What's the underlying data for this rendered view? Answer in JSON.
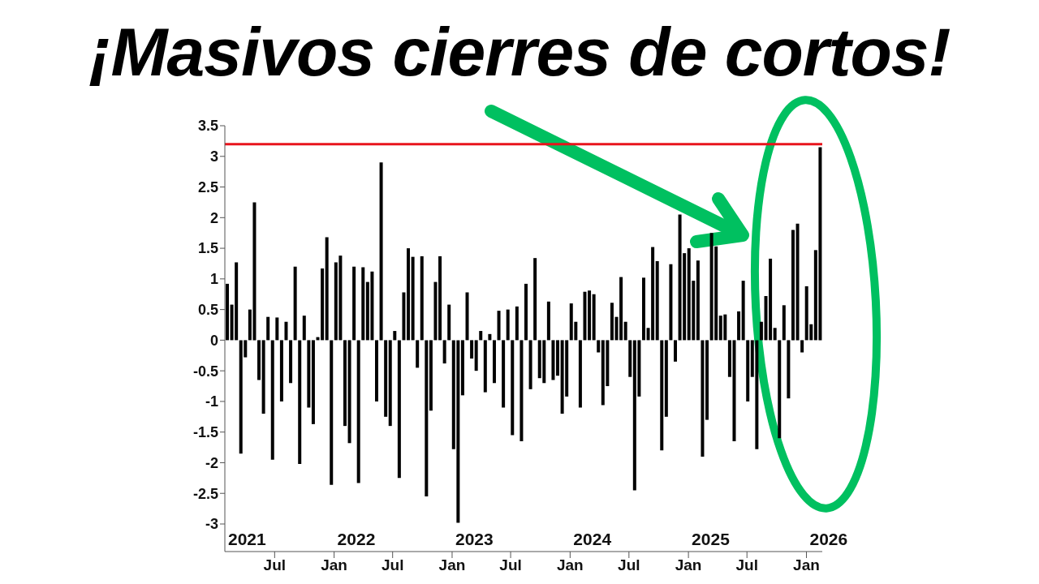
{
  "chart_data": {
    "type": "bar",
    "title": "¡Masivos cierres de cortos!",
    "x": [
      "2021-02-04",
      "2021-02-18",
      "2021-03-04",
      "2021-03-18",
      "2021-04-01",
      "2021-04-15",
      "2021-04-29",
      "2021-05-13",
      "2021-05-27",
      "2021-06-10",
      "2021-06-24",
      "2021-07-08",
      "2021-07-22",
      "2021-08-05",
      "2021-08-19",
      "2021-09-02",
      "2021-09-16",
      "2021-09-30",
      "2021-10-14",
      "2021-10-28",
      "2021-11-11",
      "2021-11-25",
      "2021-12-09",
      "2021-12-23",
      "2022-01-06",
      "2022-01-20",
      "2022-02-03",
      "2022-02-17",
      "2022-03-03",
      "2022-03-17",
      "2022-03-31",
      "2022-04-14",
      "2022-04-28",
      "2022-05-12",
      "2022-05-26",
      "2022-06-09",
      "2022-06-23",
      "2022-07-07",
      "2022-07-21",
      "2022-08-04",
      "2022-08-18",
      "2022-09-01",
      "2022-09-15",
      "2022-09-29",
      "2022-10-13",
      "2022-10-27",
      "2022-11-10",
      "2022-11-24",
      "2022-12-08",
      "2022-12-22",
      "2023-01-05",
      "2023-01-19",
      "2023-02-02",
      "2023-02-16",
      "2023-03-02",
      "2023-03-16",
      "2023-03-30",
      "2023-04-13",
      "2023-04-27",
      "2023-05-11",
      "2023-05-25",
      "2023-06-08",
      "2023-06-22",
      "2023-07-06",
      "2023-07-20",
      "2023-08-03",
      "2023-08-17",
      "2023-08-31",
      "2023-09-14",
      "2023-09-28",
      "2023-10-12",
      "2023-10-26",
      "2023-11-09",
      "2023-11-23",
      "2023-12-07",
      "2023-12-21",
      "2024-01-04",
      "2024-01-18",
      "2024-02-01",
      "2024-02-15",
      "2024-02-29",
      "2024-03-14",
      "2024-03-28",
      "2024-04-11",
      "2024-04-25",
      "2024-05-09",
      "2024-05-23",
      "2024-06-06",
      "2024-06-20",
      "2024-07-04",
      "2024-07-18",
      "2024-08-01",
      "2024-08-15",
      "2024-08-29",
      "2024-09-12",
      "2024-09-26",
      "2024-10-10",
      "2024-10-24",
      "2024-11-07",
      "2024-11-21",
      "2024-12-05",
      "2024-12-19",
      "2025-01-02",
      "2025-01-16",
      "2025-01-30",
      "2025-02-13",
      "2025-02-27",
      "2025-03-13",
      "2025-03-27",
      "2025-04-10",
      "2025-04-24",
      "2025-05-08",
      "2025-05-22",
      "2025-06-05",
      "2025-06-19",
      "2025-07-03",
      "2025-07-17",
      "2025-07-31",
      "2025-08-14",
      "2025-08-28",
      "2025-09-11",
      "2025-09-25",
      "2025-10-09",
      "2025-10-23",
      "2025-11-06",
      "2025-11-20",
      "2025-12-04",
      "2025-12-18",
      "2026-01-01",
      "2026-01-15",
      "2026-01-29",
      "2026-02-12"
    ],
    "values": [
      0.92,
      0.58,
      1.27,
      -1.85,
      -0.28,
      0.5,
      2.25,
      -0.65,
      -1.2,
      0.38,
      -1.95,
      0.37,
      -1.0,
      0.3,
      -0.7,
      1.2,
      -2.02,
      0.4,
      -1.1,
      -1.37,
      0.05,
      1.17,
      1.68,
      -2.36,
      1.27,
      1.38,
      -1.4,
      -1.68,
      1.2,
      -2.33,
      1.19,
      0.95,
      1.12,
      -1.0,
      2.9,
      -1.25,
      -1.4,
      0.15,
      -2.25,
      0.78,
      1.5,
      1.36,
      -0.45,
      1.37,
      -2.55,
      -1.15,
      0.95,
      1.37,
      -0.38,
      0.58,
      -1.78,
      -2.98,
      -0.9,
      0.78,
      -0.3,
      -0.5,
      0.15,
      -0.85,
      0.1,
      -0.7,
      0.48,
      -1.1,
      0.5,
      -1.55,
      0.55,
      -1.65,
      0.92,
      -0.8,
      1.34,
      -0.62,
      -0.7,
      0.63,
      -0.65,
      -0.58,
      -1.2,
      -0.92,
      0.6,
      0.3,
      -1.1,
      0.79,
      0.81,
      0.75,
      -0.2,
      -1.06,
      -0.75,
      0.61,
      0.38,
      1.03,
      0.3,
      -0.6,
      -2.45,
      -0.92,
      1.02,
      0.2,
      1.52,
      1.29,
      -1.8,
      -1.25,
      1.24,
      -0.35,
      2.05,
      1.42,
      1.5,
      0.97,
      1.3,
      -1.9,
      -1.3,
      1.75,
      1.53,
      0.4,
      0.42,
      -0.6,
      -1.65,
      0.47,
      0.97,
      -1.0,
      -0.6,
      -1.78,
      0.3,
      0.72,
      1.33,
      0.2,
      -1.6,
      0.57,
      -0.95,
      1.8,
      1.9,
      -0.2,
      0.88,
      0.26,
      1.47,
      3.15
    ],
    "color": "#000000",
    "xlim": [
      "2021-01-28",
      "2026-02-19"
    ],
    "xticks": [
      {
        "value": "2021-07-01",
        "label": "Jul"
      },
      {
        "value": "2022-01-01",
        "label": "Jan"
      },
      {
        "value": "2022-07-01",
        "label": "Jul"
      },
      {
        "value": "2023-01-01",
        "label": "Jan"
      },
      {
        "value": "2023-07-01",
        "label": "Jul"
      },
      {
        "value": "2024-01-01",
        "label": "Jan"
      },
      {
        "value": "2024-07-01",
        "label": "Jul"
      },
      {
        "value": "2025-01-01",
        "label": "Jan"
      },
      {
        "value": "2025-07-01",
        "label": "Jul"
      },
      {
        "value": "2026-01-01",
        "label": "Jan"
      }
    ],
    "ylim": [
      -3.45,
      3.5
    ],
    "yticks": [
      -3,
      -2.5,
      -2,
      -1.5,
      -1,
      -0.5,
      0,
      0.5,
      1,
      1.5,
      2,
      2.5,
      3,
      3.5
    ],
    "ref_lines": [
      {
        "axis": "y",
        "value": 3.2,
        "color": "#e8141c"
      }
    ],
    "annotations": [
      "2021",
      "2022",
      "2023",
      "2024",
      "2025",
      "2026"
    ],
    "grid": false,
    "legend": false
  }
}
